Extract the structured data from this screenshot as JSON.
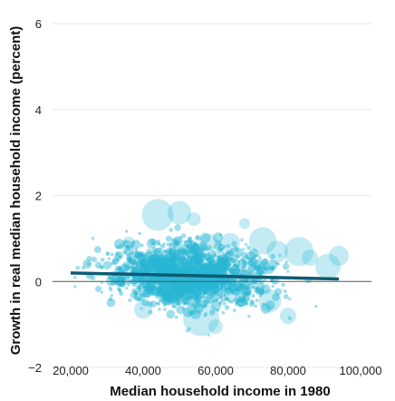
{
  "chart_data": {
    "type": "scatter",
    "title": "",
    "xlabel": "Median household income in 1980",
    "ylabel": "Growth in real median household income (percent)",
    "xlim": [
      15000,
      103000
    ],
    "ylim": [
      -2,
      6.3
    ],
    "x_ticks": [
      20000,
      40000,
      60000,
      80000,
      100000
    ],
    "x_tick_labels": [
      "20,000",
      "40,000",
      "60,000",
      "80,000",
      "100,000"
    ],
    "y_ticks": [
      -2,
      0,
      2,
      4,
      6
    ],
    "y_tick_labels": [
      "−2",
      "0",
      "2",
      "4",
      "6"
    ],
    "grid": true,
    "zero_line": true,
    "colors": {
      "points": "#29b6d4",
      "trend": "#0d5b73",
      "grid": "#e6e6e6",
      "zero_line": "#555555"
    },
    "trend_line": {
      "x": [
        20000,
        94000
      ],
      "y": [
        0.2,
        0.06
      ]
    },
    "cloud": {
      "count": 1900,
      "center_x": 52000,
      "center_y": 0.15,
      "std_x": 10000,
      "std_y": 0.35,
      "x_range": [
        20000,
        95000
      ],
      "y_range": [
        -1.8,
        2.1
      ]
    },
    "large_points": [
      {
        "x": 44000,
        "y": 1.55,
        "size": 3.5
      },
      {
        "x": 50000,
        "y": 1.6,
        "size": 2.6
      },
      {
        "x": 54000,
        "y": 1.45,
        "size": 1.5
      },
      {
        "x": 64000,
        "y": 0.9,
        "size": 2.2
      },
      {
        "x": 68000,
        "y": 1.35,
        "size": 1.2
      },
      {
        "x": 73000,
        "y": 0.95,
        "size": 3.0
      },
      {
        "x": 77000,
        "y": 0.7,
        "size": 2.4
      },
      {
        "x": 83000,
        "y": 0.7,
        "size": 3.2
      },
      {
        "x": 86000,
        "y": 0.55,
        "size": 1.8
      },
      {
        "x": 91000,
        "y": 0.35,
        "size": 2.8
      },
      {
        "x": 94000,
        "y": 0.6,
        "size": 2.2
      },
      {
        "x": 40000,
        "y": -0.65,
        "size": 2.0
      },
      {
        "x": 56000,
        "y": -0.85,
        "size": 4.0
      },
      {
        "x": 60000,
        "y": -1.05,
        "size": 1.6
      },
      {
        "x": 75000,
        "y": -0.45,
        "size": 2.5
      },
      {
        "x": 80000,
        "y": -0.8,
        "size": 1.8
      },
      {
        "x": 64000,
        "y": -0.35,
        "size": 1.4
      },
      {
        "x": 36000,
        "y": 0.9,
        "size": 1.4
      },
      {
        "x": 70000,
        "y": 0.2,
        "size": 2.6
      },
      {
        "x": 58000,
        "y": 0.9,
        "size": 2.0
      }
    ]
  }
}
